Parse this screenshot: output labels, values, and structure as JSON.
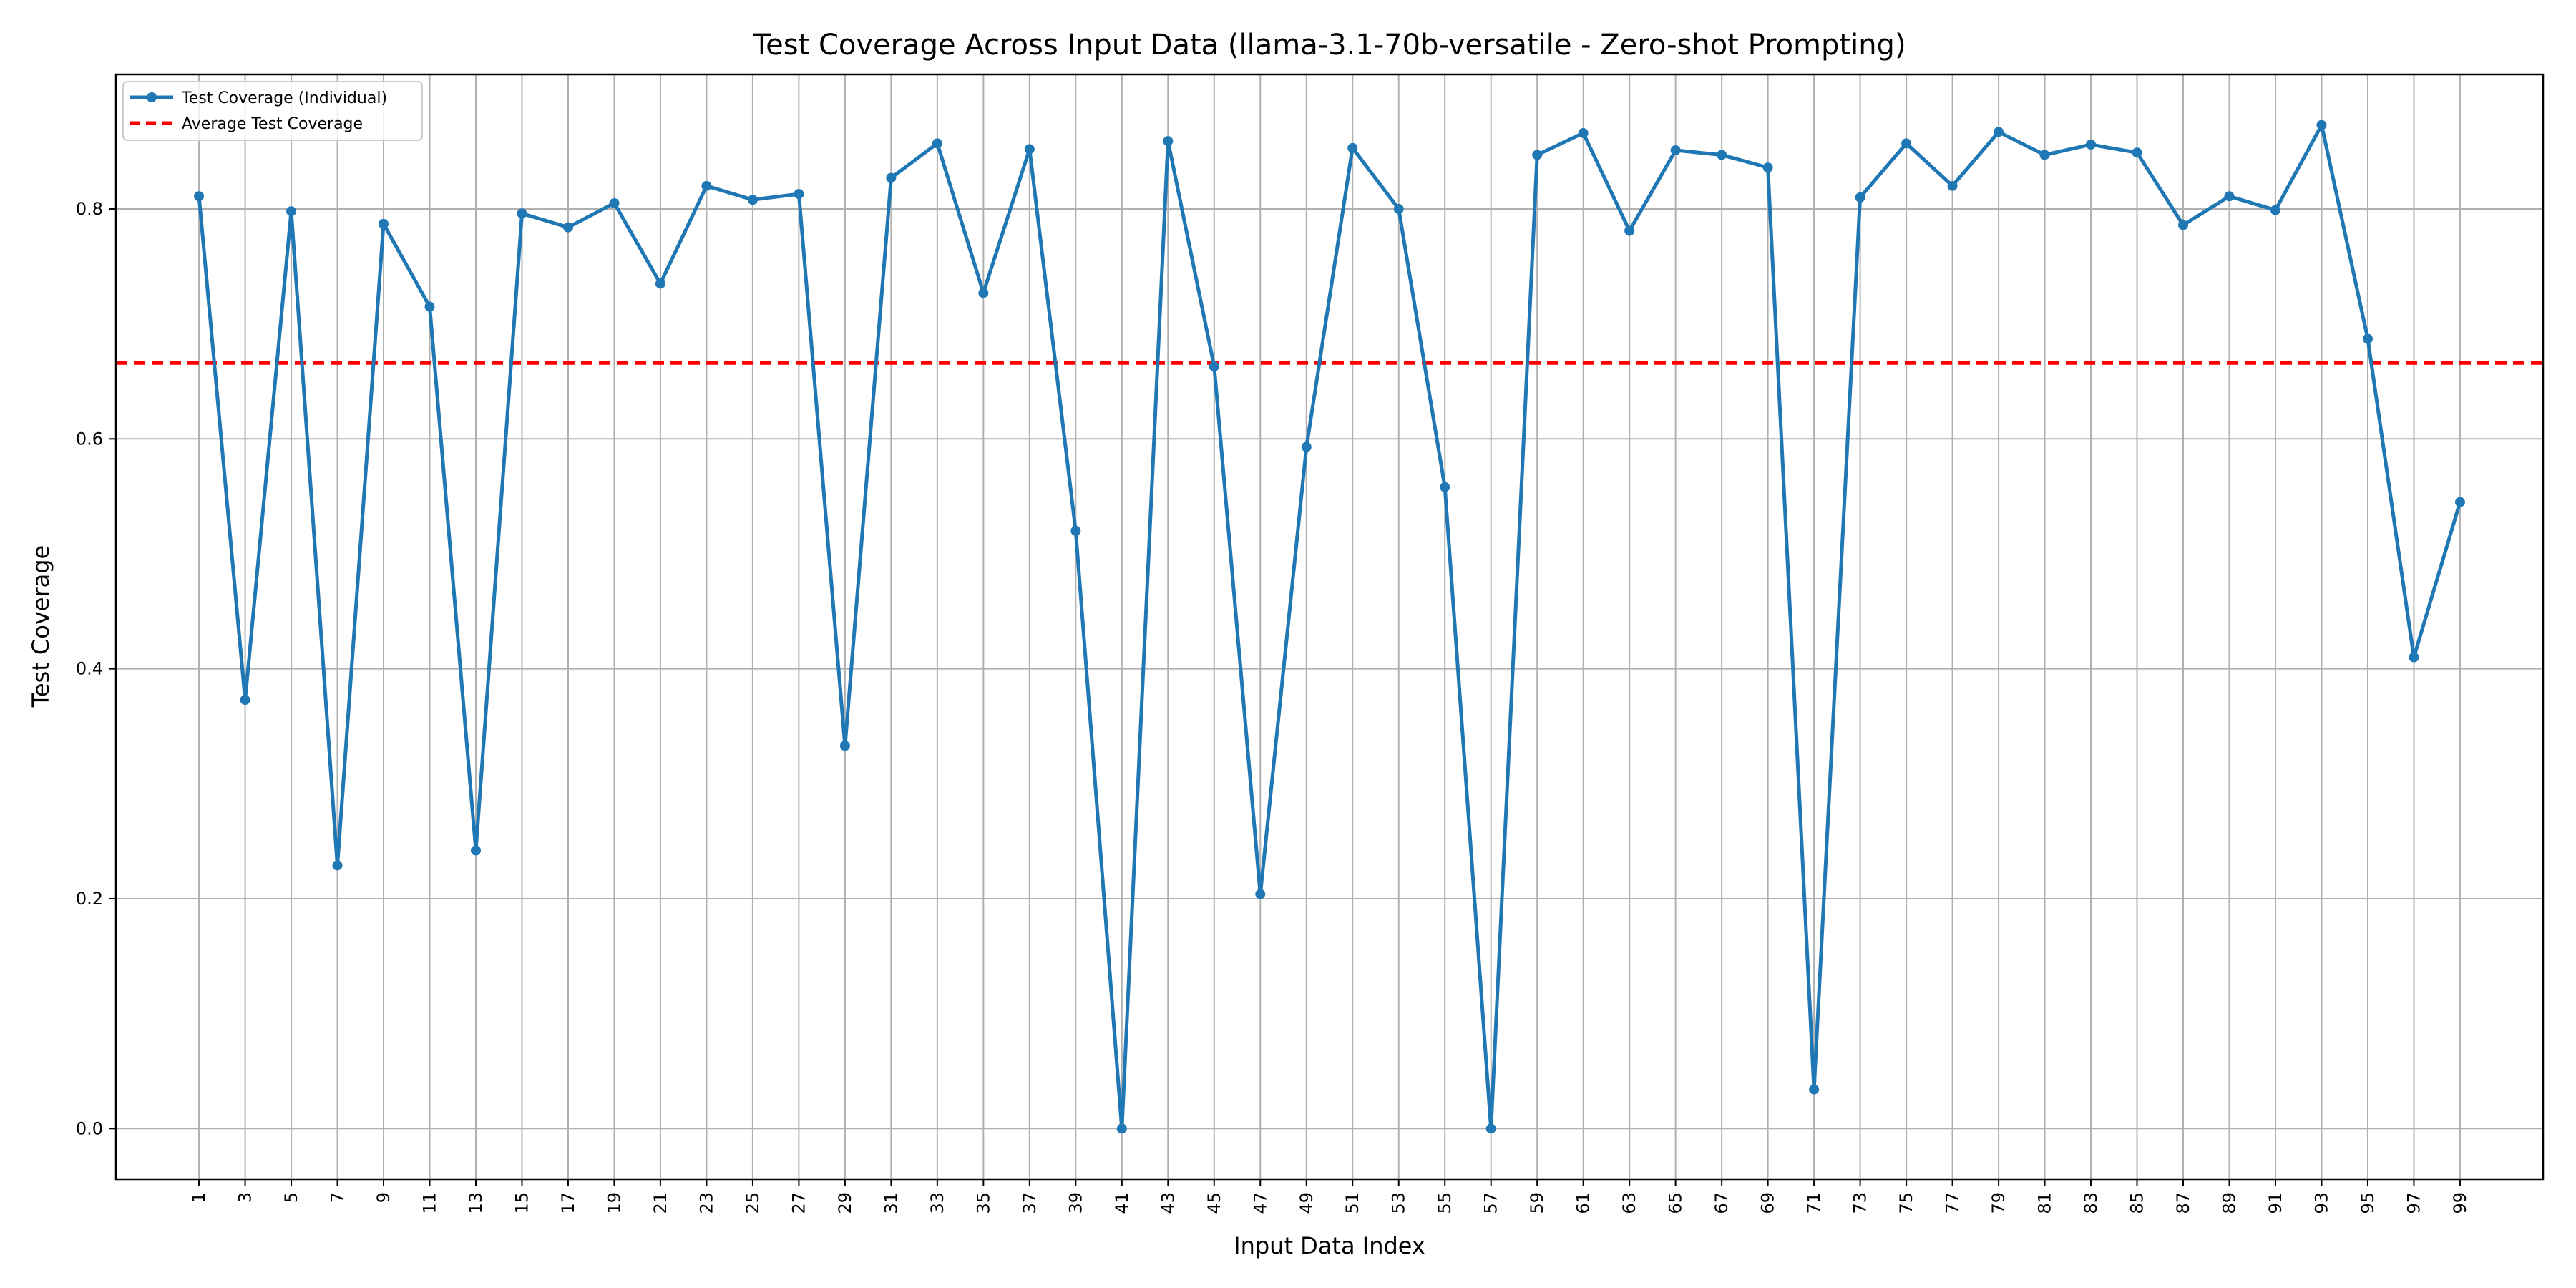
{
  "chart_data": {
    "type": "line",
    "title": "Test Coverage Across Input Data (llama-3.1-70b-versatile - Zero-shot Prompting)",
    "xlabel": "Input Data Index",
    "ylabel": "Test Coverage",
    "xlim": [
      -2.6,
      102.6
    ],
    "ylim": [
      -0.044,
      0.917
    ],
    "x_ticks": [
      1,
      3,
      5,
      7,
      9,
      11,
      13,
      15,
      17,
      19,
      21,
      23,
      25,
      27,
      29,
      31,
      33,
      35,
      37,
      39,
      41,
      43,
      45,
      47,
      49,
      51,
      53,
      55,
      57,
      59,
      61,
      63,
      65,
      67,
      69,
      71,
      73,
      75,
      77,
      79,
      81,
      83,
      85,
      87,
      89,
      91,
      93,
      95,
      97,
      99
    ],
    "x_tick_labels": [
      "1",
      "3",
      "5",
      "7",
      "9",
      "11",
      "13",
      "15",
      "17",
      "19",
      "21",
      "23",
      "25",
      "27",
      "29",
      "31",
      "33",
      "35",
      "37",
      "39",
      "41",
      "43",
      "45",
      "47",
      "49",
      "51",
      "53",
      "55",
      "57",
      "59",
      "61",
      "63",
      "65",
      "67",
      "69",
      "71",
      "73",
      "75",
      "77",
      "79",
      "81",
      "83",
      "85",
      "87",
      "89",
      "91",
      "93",
      "95",
      "97",
      "99"
    ],
    "y_ticks": [
      0.0,
      0.2,
      0.4,
      0.6,
      0.8
    ],
    "y_tick_labels": [
      "0.0",
      "0.2",
      "0.4",
      "0.6",
      "0.8"
    ],
    "grid": true,
    "legend_position": "top-left",
    "series": [
      {
        "name": "Test Coverage (Individual)",
        "style": "solid line with circle markers",
        "color": "#1f77b4",
        "x": [
          1,
          3,
          5,
          7,
          9,
          11,
          13,
          15,
          17,
          19,
          21,
          23,
          25,
          27,
          29,
          31,
          33,
          35,
          37,
          39,
          41,
          43,
          45,
          47,
          49,
          51,
          53,
          55,
          57,
          59,
          61,
          63,
          65,
          67,
          69,
          71,
          73,
          75,
          77,
          79,
          81,
          83,
          85,
          87,
          89,
          91,
          93,
          95,
          97,
          99
        ],
        "y": [
          0.811,
          0.373,
          0.798,
          0.229,
          0.787,
          0.715,
          0.242,
          0.796,
          0.784,
          0.805,
          0.735,
          0.82,
          0.808,
          0.813,
          0.333,
          0.827,
          0.857,
          0.727,
          0.852,
          0.52,
          0.0,
          0.859,
          0.663,
          0.204,
          0.593,
          0.853,
          0.8,
          0.558,
          0.0,
          0.847,
          0.866,
          0.781,
          0.851,
          0.847,
          0.836,
          0.034,
          0.81,
          0.857,
          0.82,
          0.867,
          0.847,
          0.856,
          0.849,
          0.786,
          0.811,
          0.799,
          0.873,
          0.687,
          0.41,
          0.545
        ]
      },
      {
        "name": "Average Test Coverage",
        "style": "dashed horizontal line",
        "color": "#ff0000",
        "value": 0.666
      }
    ]
  }
}
